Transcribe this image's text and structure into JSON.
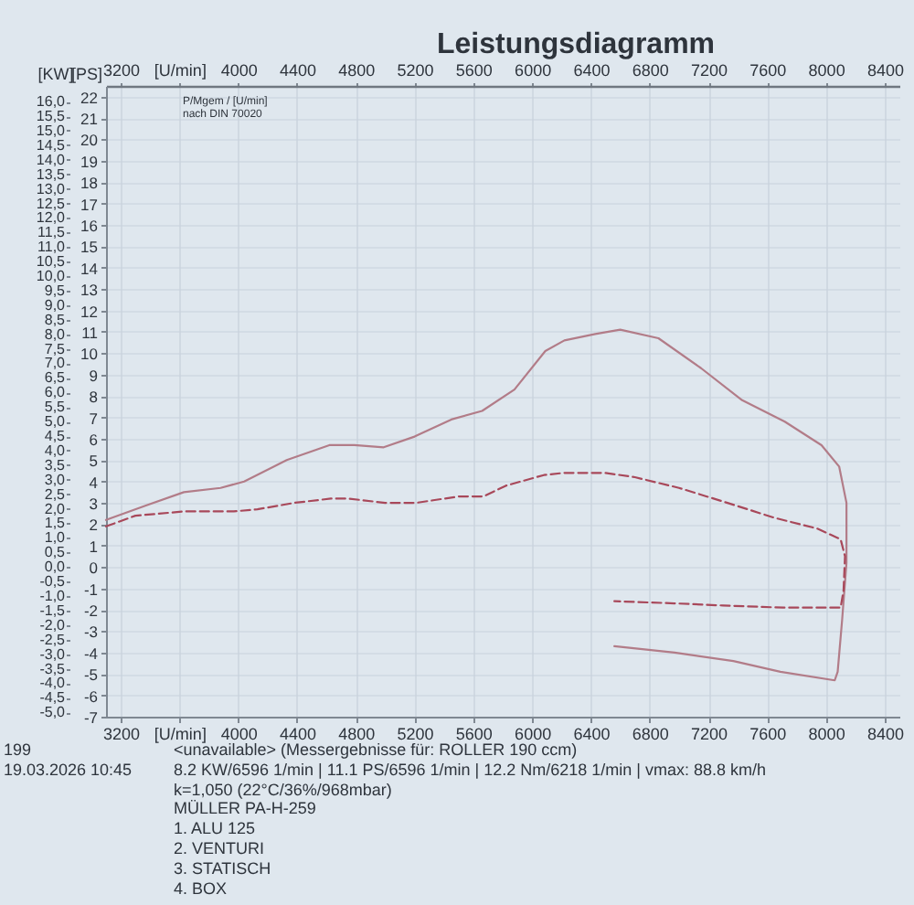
{
  "chart_data": {
    "type": "line",
    "title": "Leistungsdiagramm",
    "ylabel": "[PS]",
    "y2label": "[KW]",
    "xlim": [
      3100,
      8500
    ],
    "xticks": [
      3200,
      {
        "value": 3600,
        "label": "[U/min]"
      },
      4000,
      4400,
      4800,
      5200,
      5600,
      6000,
      6400,
      6800,
      7200,
      7600,
      8000,
      8400
    ],
    "x2lim": [
      3100,
      8500
    ],
    "x2ticks": [
      3200,
      {
        "value": 3600,
        "label": "[U/min]"
      },
      4000,
      4400,
      4800,
      5200,
      5600,
      6000,
      6400,
      6800,
      7200,
      7600,
      8000,
      8400
    ],
    "ylim": [
      -7,
      22.5
    ],
    "yticks": [
      -7,
      -6,
      -5,
      -4,
      -3,
      -2,
      -1,
      0,
      1,
      2,
      3,
      4,
      5,
      6,
      7,
      8,
      9,
      10,
      11,
      12,
      13,
      14,
      15,
      16,
      17,
      18,
      19,
      20,
      21,
      22
    ],
    "y2lim": [
      -5.15,
      16.54
    ],
    "y2ticks": [
      {
        "value": -5,
        "label": "-5,0"
      },
      {
        "value": -4.5,
        "label": "-4,5"
      },
      {
        "value": -4,
        "label": "-4,0"
      },
      {
        "value": -3.5,
        "label": "-3,5"
      },
      {
        "value": -3,
        "label": "-3,0"
      },
      {
        "value": -2.5,
        "label": "-2,5"
      },
      {
        "value": -2,
        "label": "-2,0"
      },
      {
        "value": -1.5,
        "label": "-1,5"
      },
      {
        "value": -1,
        "label": "-1,0"
      },
      {
        "value": -0.5,
        "label": "-0,5"
      },
      {
        "value": 0,
        "label": "0,0"
      },
      {
        "value": 0.5,
        "label": "0,5"
      },
      {
        "value": 1,
        "label": "1,0"
      },
      {
        "value": 1.5,
        "label": "1,5"
      },
      {
        "value": 2,
        "label": "2,0"
      },
      {
        "value": 2.5,
        "label": "2,5"
      },
      {
        "value": 3,
        "label": "3,0"
      },
      {
        "value": 3.5,
        "label": "3,5"
      },
      {
        "value": 4,
        "label": "4,0"
      },
      {
        "value": 4.5,
        "label": "4,5"
      },
      {
        "value": 5,
        "label": "5,0"
      },
      {
        "value": 5.5,
        "label": "5,5"
      },
      {
        "value": 6,
        "label": "6,0"
      },
      {
        "value": 6.5,
        "label": "6,5"
      },
      {
        "value": 7,
        "label": "7,0"
      },
      {
        "value": 7.5,
        "label": "7,5"
      },
      {
        "value": 8,
        "label": "8,0"
      },
      {
        "value": 8.5,
        "label": "8,5"
      },
      {
        "value": 9,
        "label": "9,0"
      },
      {
        "value": 9.5,
        "label": "9,5"
      },
      {
        "value": 10,
        "label": "10,0"
      },
      {
        "value": 10.5,
        "label": "10,5"
      },
      {
        "value": 11,
        "label": "11,0"
      },
      {
        "value": 11.5,
        "label": "11,5"
      },
      {
        "value": 12,
        "label": "12,0"
      },
      {
        "value": 12.5,
        "label": "12,5"
      },
      {
        "value": 13,
        "label": "13,0"
      },
      {
        "value": 13.5,
        "label": "13,5"
      },
      {
        "value": 14,
        "label": "14,0"
      },
      {
        "value": 14.5,
        "label": "14,5"
      },
      {
        "value": 15,
        "label": "15,0"
      },
      {
        "value": 15.5,
        "label": "15,5"
      },
      {
        "value": 16,
        "label": "16,0"
      }
    ],
    "grid": true,
    "series": [
      {
        "color": "#b27c88",
        "line_style": "solid",
        "x": [
          3100,
          3380,
          3630,
          3880,
          4040,
          4330,
          4620,
          4790,
          4990,
          5200,
          5450,
          5660,
          5880,
          6090,
          6220,
          6430,
          6600,
          6860,
          7150,
          7430,
          7720,
          7970,
          8090,
          8140,
          8140,
          8110,
          8080,
          8060,
          7690,
          7370,
          6970,
          6560
        ],
        "values": [
          2.2,
          2.9,
          3.5,
          3.7,
          4.0,
          5.0,
          5.7,
          5.7,
          5.6,
          6.1,
          6.9,
          7.3,
          8.3,
          10.1,
          10.6,
          10.9,
          11.1,
          10.7,
          9.3,
          7.8,
          6.8,
          5.7,
          4.7,
          3.0,
          0.2,
          -2.5,
          -4.9,
          -5.3,
          -4.9,
          -4.4,
          -4.0,
          -3.7
        ]
      },
      {
        "color": "#a8485a",
        "line_style": "dashed",
        "x": [
          3100,
          3300,
          3630,
          3970,
          4130,
          4380,
          4630,
          4750,
          5000,
          5210,
          5500,
          5670,
          5820,
          6080,
          6210,
          6500,
          6700,
          7000,
          7330,
          7650,
          7940,
          8100,
          8130,
          8120,
          8100,
          7710,
          7300,
          6970,
          6560
        ],
        "values": [
          1.9,
          2.4,
          2.6,
          2.6,
          2.7,
          3.0,
          3.2,
          3.2,
          3.0,
          3.0,
          3.3,
          3.3,
          3.8,
          4.3,
          4.4,
          4.4,
          4.2,
          3.7,
          3.0,
          2.3,
          1.8,
          1.3,
          0.5,
          -1.1,
          -1.9,
          -1.9,
          -1.8,
          -1.7,
          -1.6
        ]
      }
    ],
    "annotations": [
      "P/Mgem / [U/min]",
      "nach DIN 70020",
      "199",
      "19.03.2026 10:45",
      "<unavailable> (Messergebnisse für: ROLLER 190 ccm)",
      "8.2 KW/6596 1/min | 11.1 PS/6596 1/min | 12.2 Nm/6218 1/min | vmax: 88.8 km/h",
      "k=1,050 (22°C/36%/968mbar)",
      "MÜLLER PA-H-259",
      "1. ALU 125",
      "2. VENTURI",
      "3. STATISCH",
      "4. BOX"
    ]
  }
}
